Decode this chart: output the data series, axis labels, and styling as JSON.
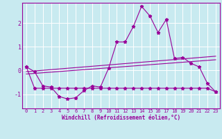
{
  "xlabel": "Windchill (Refroidissement éolien,°C)",
  "bg_color": "#c8eaf0",
  "grid_color": "#ffffff",
  "line_color": "#990099",
  "xlim": [
    -0.5,
    23.5
  ],
  "ylim": [
    -1.6,
    2.85
  ],
  "yticks": [
    -1,
    0,
    1,
    2
  ],
  "xticks": [
    0,
    1,
    2,
    3,
    4,
    5,
    6,
    7,
    8,
    9,
    10,
    11,
    12,
    13,
    14,
    15,
    16,
    17,
    18,
    19,
    20,
    21,
    22,
    23
  ],
  "series1_x": [
    0,
    1,
    2,
    3,
    4,
    5,
    6,
    7,
    8,
    9,
    10,
    11,
    12,
    13,
    14,
    15,
    16,
    17,
    18,
    19,
    20,
    21,
    22,
    23
  ],
  "series1_y": [
    0.15,
    -0.05,
    -0.65,
    -0.7,
    -1.1,
    -1.2,
    -1.15,
    -0.85,
    -0.65,
    -0.7,
    0.1,
    1.2,
    1.2,
    1.85,
    2.7,
    2.3,
    1.6,
    2.15,
    0.5,
    0.55,
    0.3,
    0.15,
    -0.55,
    -0.9
  ],
  "series2_x": [
    0,
    1,
    2,
    3,
    4,
    5,
    6,
    7,
    8,
    9,
    10,
    11,
    12,
    13,
    14,
    15,
    16,
    17,
    18,
    19,
    20,
    21,
    22,
    23
  ],
  "series2_y": [
    0.15,
    -0.75,
    -0.75,
    -0.75,
    -0.75,
    -0.75,
    -0.75,
    -0.75,
    -0.75,
    -0.75,
    -0.75,
    -0.75,
    -0.75,
    -0.75,
    -0.75,
    -0.75,
    -0.75,
    -0.75,
    -0.75,
    -0.75,
    -0.75,
    -0.75,
    -0.75,
    -0.9
  ],
  "series3_x": [
    0,
    23
  ],
  "series3_y": [
    -0.05,
    0.6
  ],
  "series4_x": [
    0,
    23
  ],
  "series4_y": [
    -0.15,
    0.45
  ]
}
